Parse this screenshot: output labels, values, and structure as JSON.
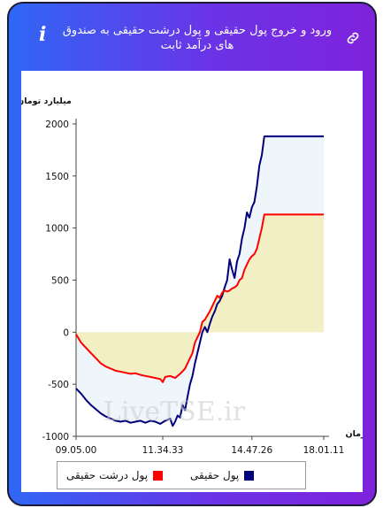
{
  "header": {
    "title": "ورود و خروج پول حقیقی و پول درشت حقیقی به صندوق های درآمد ثابت",
    "link_icon": "link-icon",
    "info_icon": "info-icon",
    "info_glyph": "i"
  },
  "watermark": "LiveTSE.ir",
  "colors": {
    "real_money": "#00007a",
    "big_real_money": "#ff0000",
    "fill_positive": "#eef5fb",
    "fill_negative": "#f2eec1"
  },
  "chart_data": {
    "type": "line",
    "title": "",
    "ylabel": "میلیارد تومان",
    "xlabel": "زمان",
    "ylim": [
      -1000,
      2000
    ],
    "yticks": [
      2000,
      1500,
      1000,
      500,
      0,
      -500,
      -1000
    ],
    "xticks": [
      "09.05.00",
      "11.34.33",
      "14.47.26",
      "18.01.11"
    ],
    "x_index_range": [
      0,
      100
    ],
    "xtick_index": [
      0,
      35,
      71,
      100
    ],
    "grid": false,
    "legend_position": "bottom",
    "series": [
      {
        "name": "پول حقیقی",
        "color": "#00007a",
        "points": [
          [
            0,
            -540
          ],
          [
            2,
            -590
          ],
          [
            4,
            -650
          ],
          [
            6,
            -700
          ],
          [
            8,
            -740
          ],
          [
            10,
            -780
          ],
          [
            12,
            -810
          ],
          [
            14,
            -830
          ],
          [
            16,
            -850
          ],
          [
            18,
            -860
          ],
          [
            20,
            -850
          ],
          [
            22,
            -870
          ],
          [
            24,
            -860
          ],
          [
            26,
            -850
          ],
          [
            28,
            -870
          ],
          [
            30,
            -850
          ],
          [
            32,
            -860
          ],
          [
            34,
            -880
          ],
          [
            36,
            -850
          ],
          [
            38,
            -830
          ],
          [
            39,
            -900
          ],
          [
            40,
            -860
          ],
          [
            41,
            -800
          ],
          [
            42,
            -820
          ],
          [
            43,
            -700
          ],
          [
            44,
            -750
          ],
          [
            45,
            -620
          ],
          [
            46,
            -500
          ],
          [
            47,
            -420
          ],
          [
            48,
            -300
          ],
          [
            49,
            -200
          ],
          [
            50,
            -100
          ],
          [
            51,
            0
          ],
          [
            52,
            50
          ],
          [
            53,
            0
          ],
          [
            54,
            80
          ],
          [
            55,
            150
          ],
          [
            56,
            200
          ],
          [
            57,
            270
          ],
          [
            58,
            300
          ],
          [
            59,
            350
          ],
          [
            60,
            430
          ],
          [
            61,
            500
          ],
          [
            62,
            700
          ],
          [
            63,
            600
          ],
          [
            64,
            520
          ],
          [
            65,
            680
          ],
          [
            66,
            750
          ],
          [
            67,
            900
          ],
          [
            68,
            1000
          ],
          [
            69,
            1150
          ],
          [
            70,
            1100
          ],
          [
            71,
            1200
          ],
          [
            72,
            1250
          ],
          [
            73,
            1400
          ],
          [
            74,
            1600
          ],
          [
            75,
            1700
          ],
          [
            76,
            1880
          ],
          [
            100,
            1880
          ]
        ]
      },
      {
        "name": "پول درشت حقیقی",
        "color": "#ff0000",
        "points": [
          [
            0,
            -20
          ],
          [
            2,
            -100
          ],
          [
            4,
            -150
          ],
          [
            6,
            -200
          ],
          [
            8,
            -250
          ],
          [
            10,
            -300
          ],
          [
            12,
            -330
          ],
          [
            14,
            -350
          ],
          [
            16,
            -370
          ],
          [
            18,
            -380
          ],
          [
            20,
            -390
          ],
          [
            22,
            -400
          ],
          [
            24,
            -395
          ],
          [
            26,
            -410
          ],
          [
            28,
            -420
          ],
          [
            30,
            -430
          ],
          [
            32,
            -440
          ],
          [
            34,
            -450
          ],
          [
            35,
            -480
          ],
          [
            36,
            -430
          ],
          [
            38,
            -420
          ],
          [
            40,
            -440
          ],
          [
            42,
            -400
          ],
          [
            44,
            -350
          ],
          [
            45,
            -300
          ],
          [
            46,
            -250
          ],
          [
            47,
            -200
          ],
          [
            48,
            -100
          ],
          [
            49,
            -50
          ],
          [
            50,
            0
          ],
          [
            51,
            100
          ],
          [
            52,
            120
          ],
          [
            54,
            200
          ],
          [
            55,
            250
          ],
          [
            56,
            300
          ],
          [
            57,
            350
          ],
          [
            58,
            330
          ],
          [
            59,
            380
          ],
          [
            60,
            400
          ],
          [
            61,
            390
          ],
          [
            62,
            400
          ],
          [
            63,
            420
          ],
          [
            64,
            430
          ],
          [
            65,
            450
          ],
          [
            66,
            500
          ],
          [
            67,
            520
          ],
          [
            68,
            600
          ],
          [
            69,
            650
          ],
          [
            70,
            700
          ],
          [
            71,
            730
          ],
          [
            72,
            750
          ],
          [
            73,
            800
          ],
          [
            74,
            900
          ],
          [
            75,
            1000
          ],
          [
            76,
            1130
          ],
          [
            100,
            1130
          ]
        ]
      }
    ]
  }
}
